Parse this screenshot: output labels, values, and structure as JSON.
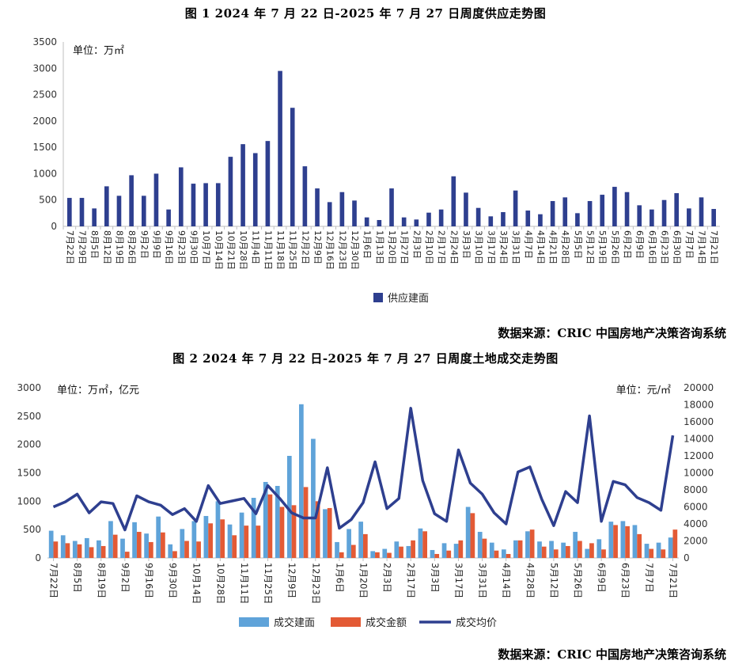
{
  "chart_data": [
    {
      "type": "bar",
      "title": "图 1   2024 年 7 月 22 日-2025 年 7 月 27 日周度供应走势图",
      "unit_label": "单位：万㎡",
      "ylim": [
        0,
        3500
      ],
      "yticks": [
        0,
        500,
        1000,
        1500,
        2000,
        2500,
        3000,
        3500
      ],
      "categories": [
        "7月22日",
        "7月29日",
        "8月5日",
        "8月12日",
        "8月19日",
        "8月26日",
        "9月2日",
        "9月9日",
        "9月16日",
        "9月23日",
        "9月30日",
        "10月7日",
        "10月14日",
        "10月21日",
        "10月28日",
        "11月4日",
        "11月11日",
        "11月18日",
        "11月25日",
        "12月2日",
        "12月9日",
        "12月16日",
        "12月23日",
        "12月30日",
        "1月6日",
        "1月13日",
        "1月20日",
        "1月27日",
        "2月3日",
        "2月10日",
        "2月17日",
        "2月24日",
        "3月3日",
        "3月10日",
        "3月17日",
        "3月24日",
        "3月31日",
        "4月7日",
        "4月14日",
        "4月21日",
        "4月28日",
        "5月5日",
        "5月12日",
        "5月19日",
        "5月26日",
        "6月2日",
        "6月9日",
        "6月16日",
        "6月23日",
        "6月30日",
        "7月7日",
        "7月14日",
        "7月21日"
      ],
      "series": [
        {
          "name": "供应建面",
          "color": "#2e3f8f",
          "values": [
            540,
            540,
            340,
            760,
            580,
            970,
            580,
            1000,
            320,
            1120,
            810,
            820,
            820,
            1320,
            1560,
            1390,
            1620,
            2950,
            2250,
            1140,
            720,
            460,
            650,
            490,
            170,
            120,
            720,
            170,
            130,
            260,
            320,
            950,
            640,
            350,
            190,
            270,
            680,
            300,
            230,
            480,
            550,
            250,
            480,
            600,
            750,
            650,
            400,
            320,
            500,
            630,
            340,
            550,
            330
          ]
        }
      ],
      "legend": "bottom",
      "source": "数据来源：CRIC 中国房地产决策咨询系统"
    },
    {
      "type": "bar+line",
      "title": "图 2   2024 年 7 月 22 日-2025 年 7 月 27 日周度土地成交走势图",
      "unit_label_left": "单位：万㎡，亿元",
      "unit_label_right": "单位：元/㎡",
      "ylim_left": [
        0,
        3000
      ],
      "yticks_left": [
        0,
        500,
        1000,
        1500,
        2000,
        2500,
        3000
      ],
      "ylim_right": [
        0,
        20000
      ],
      "yticks_right": [
        0,
        2000,
        4000,
        6000,
        8000,
        10000,
        12000,
        14000,
        16000,
        18000,
        20000
      ],
      "tick_labels": [
        "7月22日",
        "8月5日",
        "8月19日",
        "9月2日",
        "9月16日",
        "9月30日",
        "10月14日",
        "10月28日",
        "11月11日",
        "11月25日",
        "12月9日",
        "12月23日",
        "1月6日",
        "1月20日",
        "2月3日",
        "2月17日",
        "3月3日",
        "3月17日",
        "3月31日",
        "4月14日",
        "4月28日",
        "5月12日",
        "5月26日",
        "6月9日",
        "6月23日",
        "7月7日",
        "7月21日"
      ],
      "series": [
        {
          "name": "成交建面",
          "color": "#5fa3d9",
          "axis": "left",
          "values": [
            480,
            400,
            300,
            350,
            310,
            650,
            340,
            630,
            430,
            730,
            240,
            510,
            650,
            740,
            1000,
            590,
            800,
            1060,
            1340,
            1270,
            1800,
            2710,
            2100,
            860,
            280,
            510,
            640,
            120,
            160,
            290,
            210,
            520,
            140,
            260,
            250,
            900,
            460,
            270,
            150,
            310,
            470,
            290,
            300,
            270,
            460,
            160,
            330,
            640,
            650,
            580,
            250,
            270,
            360
          ]
        },
        {
          "name": "成交金额",
          "color": "#e35a35",
          "axis": "left",
          "values": [
            290,
            260,
            240,
            190,
            210,
            410,
            110,
            460,
            280,
            450,
            120,
            300,
            290,
            610,
            680,
            400,
            570,
            570,
            1120,
            900,
            930,
            1250,
            1000,
            880,
            100,
            230,
            420,
            100,
            90,
            200,
            310,
            470,
            70,
            130,
            310,
            790,
            340,
            130,
            70,
            310,
            500,
            200,
            150,
            210,
            300,
            260,
            150,
            580,
            560,
            420,
            160,
            150,
            500
          ]
        },
        {
          "name": "成交均价",
          "color": "#2e3f8f",
          "axis": "right",
          "values": [
            6000,
            6600,
            7500,
            5300,
            6600,
            6400,
            3300,
            7300,
            6600,
            6200,
            5100,
            5800,
            4300,
            8500,
            6400,
            6700,
            7000,
            5200,
            8500,
            7000,
            5300,
            4700,
            4700,
            10600,
            3500,
            4500,
            6500,
            11300,
            5800,
            7000,
            17600,
            9100,
            5200,
            4300,
            12700,
            8800,
            7500,
            5300,
            4000,
            10100,
            10700,
            6900,
            3800,
            7800,
            6500,
            16700,
            4300,
            9000,
            8600,
            7100,
            6500,
            5600,
            14400
          ]
        }
      ],
      "legend": "bottom",
      "source": "数据来源：CRIC 中国房地产决策咨询系统"
    }
  ]
}
